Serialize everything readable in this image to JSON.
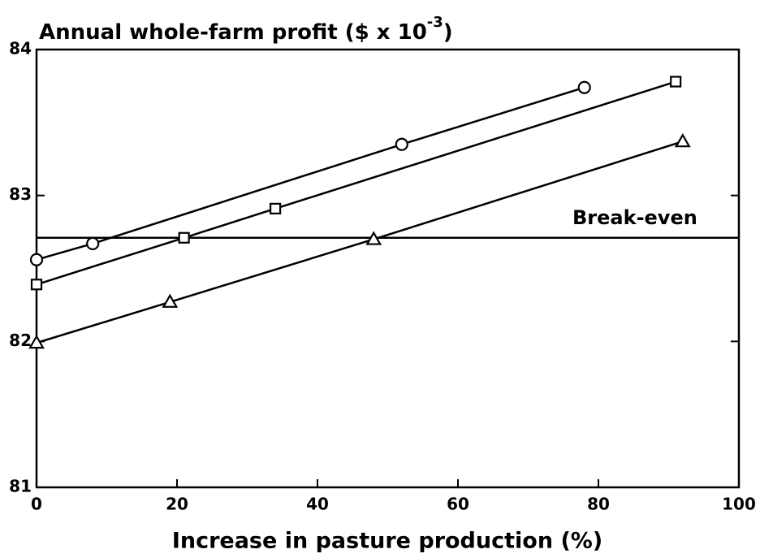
{
  "chart_data": {
    "type": "line",
    "title": "Annual whole-farm profit ($ x 10",
    "title_exponent": "-3",
    "title_suffix": ")",
    "x_label": "Increase in pasture production (%)",
    "xlim": [
      0,
      100
    ],
    "xticks": [
      0,
      20,
      40,
      60,
      80,
      100
    ],
    "ylim": [
      81,
      84
    ],
    "yticks": [
      81,
      82,
      83,
      84
    ],
    "color": "#000000",
    "reference_line": {
      "label": "Break-even",
      "value": 82.71
    },
    "series": [
      {
        "marker": "circle",
        "x": [
          0,
          8,
          52,
          78
        ],
        "values": [
          82.56,
          82.67,
          83.35,
          83.74
        ]
      },
      {
        "marker": "square",
        "x": [
          0,
          21,
          34,
          91
        ],
        "values": [
          82.39,
          82.71,
          82.91,
          83.78
        ]
      },
      {
        "marker": "triangle",
        "x": [
          0,
          19,
          48,
          92
        ],
        "values": [
          81.99,
          82.27,
          82.7,
          83.37
        ]
      }
    ]
  }
}
